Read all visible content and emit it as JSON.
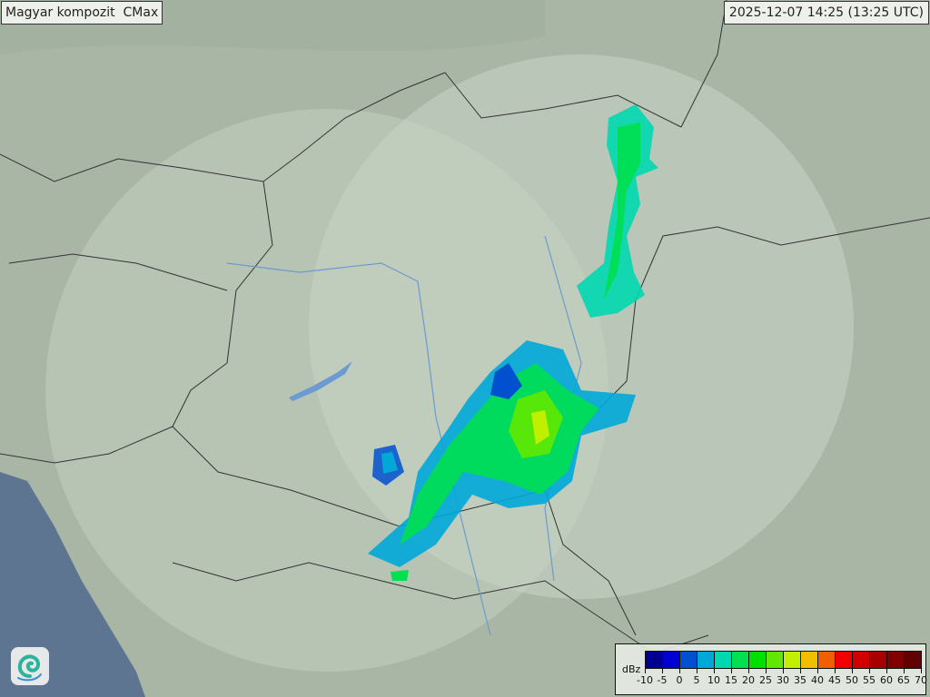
{
  "header": {
    "title": "Magyar kompozit  CMax",
    "timestamp": "2025-12-07 14:25 (13:25 UTC)"
  },
  "legend": {
    "unit": "dBz",
    "ticks": [
      "-10",
      "-5",
      "0",
      "5",
      "10",
      "15",
      "20",
      "25",
      "30",
      "35",
      "40",
      "45",
      "50",
      "55",
      "60",
      "65",
      "70"
    ],
    "colors": [
      "#000090",
      "#0000d0",
      "#0050d0",
      "#00a8d8",
      "#00d8b0",
      "#00e050",
      "#00e000",
      "#60e800",
      "#c0f000",
      "#f0c000",
      "#f06000",
      "#f00000",
      "#d00000",
      "#a80000",
      "#800000",
      "#600000"
    ]
  },
  "map": {
    "terrain_color": "#a9b6a6",
    "coverage_color": "#c8d3c4",
    "sea_color": "#5d7590",
    "border_color": "#333333",
    "river_color": "#6b9bd0",
    "logo_icon": "swirl-logo-icon"
  }
}
